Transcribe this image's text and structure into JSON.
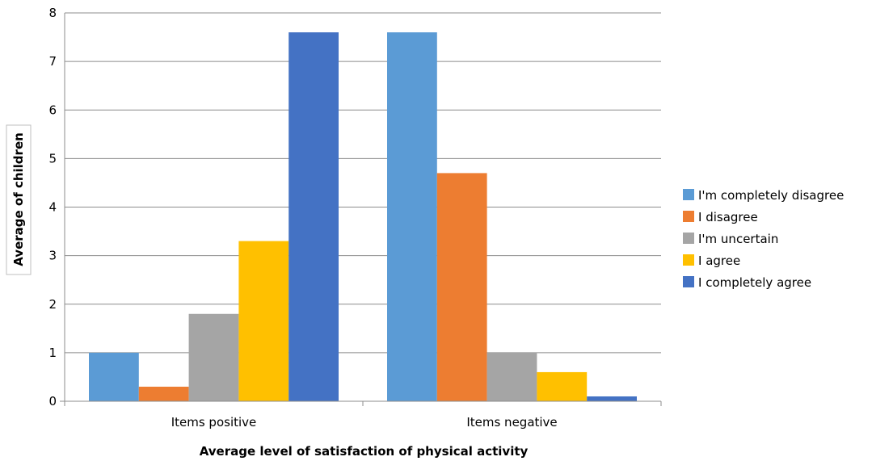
{
  "chart_data": {
    "type": "bar",
    "categories": [
      "Items positive",
      "Items negative"
    ],
    "series": [
      {
        "name": "I'm completely disagree",
        "values": [
          1.0,
          7.6
        ],
        "color": "#5B9BD5"
      },
      {
        "name": "I disagree",
        "values": [
          0.3,
          4.7
        ],
        "color": "#ED7D31"
      },
      {
        "name": "I'm uncertain",
        "values": [
          1.8,
          1.0
        ],
        "color": "#A5A5A5"
      },
      {
        "name": "I agree",
        "values": [
          3.3,
          0.6
        ],
        "color": "#FFC000"
      },
      {
        "name": "I completely agree",
        "values": [
          7.6,
          0.1
        ],
        "color": "#4472C4"
      }
    ],
    "xlabel": "Average level of satisfaction of physical activity",
    "ylabel": "Average of children",
    "ylim": [
      0,
      8
    ],
    "yticks": [
      0,
      1,
      2,
      3,
      4,
      5,
      6,
      7,
      8
    ],
    "grid": true,
    "legend_position": "right"
  }
}
